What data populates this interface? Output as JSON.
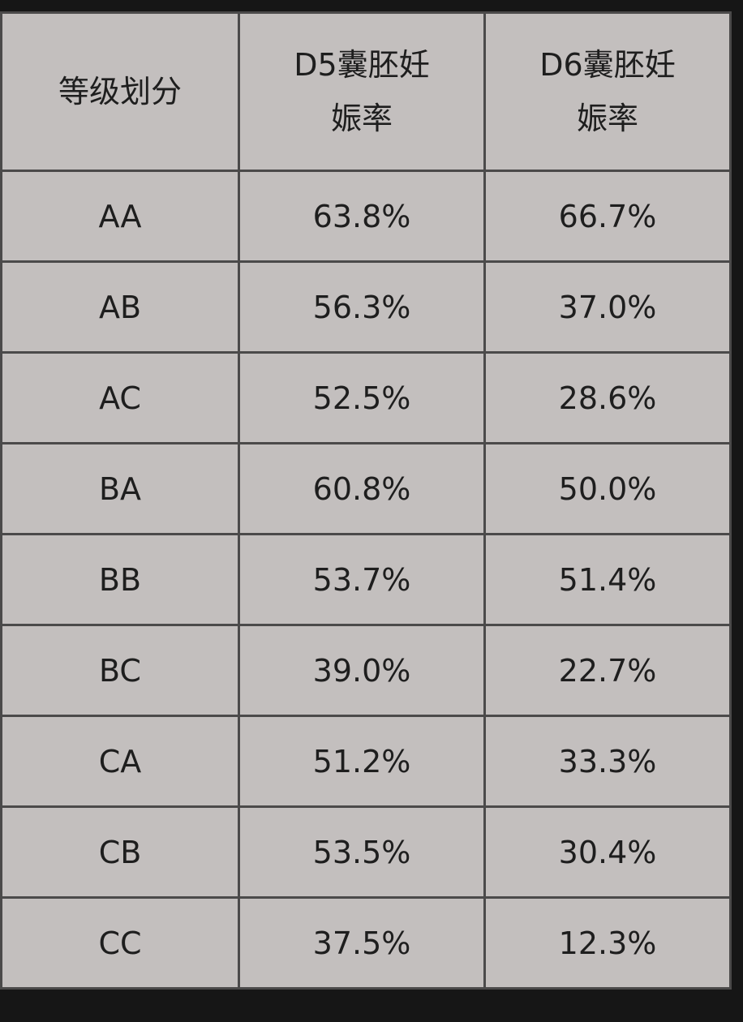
{
  "table": {
    "header": [
      "等级划分",
      "D5囊胚妊娠率",
      "D6囊胚妊娠率"
    ],
    "rows": [
      [
        "AA",
        "63.8%",
        "66.7%"
      ],
      [
        "AB",
        "56.3%",
        "37.0%"
      ],
      [
        "AC",
        "52.5%",
        "28.6%"
      ],
      [
        "BA",
        "60.8%",
        "50.0%"
      ],
      [
        "BB",
        "53.7%",
        "51.4%"
      ],
      [
        "BC",
        "39.0%",
        "22.7%"
      ],
      [
        "CA",
        "51.2%",
        "33.3%"
      ],
      [
        "CB",
        "53.5%",
        "30.4%"
      ],
      [
        "CC",
        "37.5%",
        "12.3%"
      ]
    ]
  }
}
